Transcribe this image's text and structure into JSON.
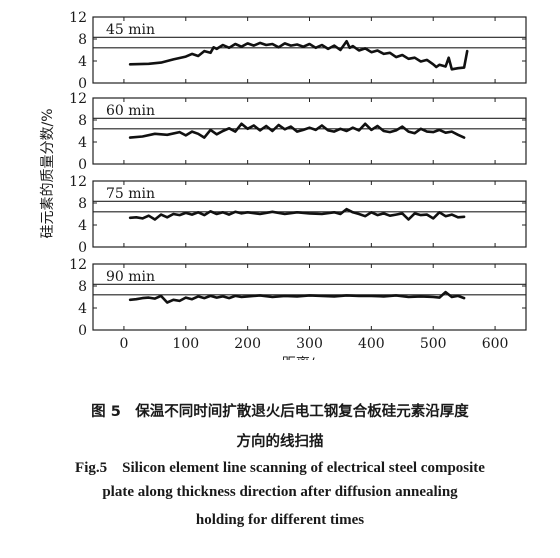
{
  "chart_data": {
    "type": "line",
    "ylabel": "硅元素的质量分数/%",
    "xlabel": "距离/μm",
    "xlim": [
      -50,
      650
    ],
    "ylim": [
      0,
      12
    ],
    "x_ticks": [
      0,
      100,
      200,
      300,
      400,
      500,
      600
    ],
    "y_ticks": [
      0,
      4,
      8,
      12
    ],
    "grid": false,
    "reference_lines_y": [
      6.4,
      8.3
    ],
    "panels": [
      {
        "label": "45 min",
        "x": [
          10,
          40,
          60,
          80,
          100,
          110,
          120,
          130,
          140,
          145,
          150,
          160,
          170,
          180,
          190,
          200,
          210,
          220,
          230,
          240,
          250,
          260,
          270,
          280,
          290,
          300,
          310,
          320,
          330,
          340,
          350,
          360,
          365,
          370,
          380,
          390,
          400,
          410,
          420,
          430,
          440,
          450,
          460,
          470,
          480,
          490,
          500,
          505,
          510,
          520,
          525,
          530,
          540,
          550,
          555
        ],
        "values": [
          3.4,
          3.5,
          3.7,
          4.3,
          4.8,
          5.3,
          4.9,
          5.8,
          5.5,
          6.5,
          6.2,
          6.9,
          6.4,
          7.1,
          6.6,
          7.2,
          6.8,
          7.3,
          6.9,
          7.1,
          6.5,
          7.2,
          6.8,
          7.0,
          6.6,
          7.1,
          6.4,
          6.9,
          6.2,
          6.8,
          6.0,
          7.6,
          6.4,
          6.7,
          5.9,
          6.3,
          5.6,
          5.9,
          5.3,
          5.5,
          4.7,
          5.1,
          4.4,
          4.6,
          3.9,
          4.2,
          3.4,
          2.9,
          3.3,
          3.0,
          4.6,
          2.5,
          2.7,
          2.8,
          5.8
        ]
      },
      {
        "label": "60 min",
        "x": [
          10,
          30,
          50,
          70,
          90,
          100,
          110,
          120,
          130,
          140,
          150,
          160,
          170,
          180,
          190,
          200,
          210,
          220,
          230,
          240,
          250,
          260,
          270,
          280,
          290,
          300,
          310,
          320,
          330,
          340,
          350,
          360,
          370,
          380,
          390,
          400,
          410,
          420,
          430,
          440,
          450,
          460,
          470,
          480,
          490,
          500,
          510,
          520,
          530,
          540,
          550
        ],
        "values": [
          4.8,
          5.0,
          5.5,
          5.3,
          5.8,
          5.2,
          5.9,
          5.5,
          4.8,
          6.2,
          5.4,
          6.0,
          6.5,
          5.9,
          7.3,
          6.4,
          7.0,
          6.1,
          6.9,
          6.0,
          7.1,
          6.3,
          6.8,
          5.9,
          6.2,
          6.6,
          6.2,
          7.0,
          6.1,
          5.9,
          6.4,
          6.0,
          6.6,
          6.1,
          7.3,
          6.2,
          6.9,
          6.0,
          5.8,
          6.1,
          6.8,
          5.9,
          5.6,
          6.4,
          5.9,
          5.8,
          6.2,
          5.7,
          5.9,
          5.3,
          4.8
        ]
      },
      {
        "label": "75 min",
        "x": [
          10,
          20,
          30,
          40,
          50,
          60,
          70,
          80,
          90,
          100,
          110,
          120,
          130,
          140,
          150,
          160,
          170,
          180,
          190,
          200,
          220,
          240,
          260,
          280,
          300,
          320,
          340,
          350,
          360,
          370,
          380,
          390,
          400,
          410,
          420,
          430,
          440,
          450,
          460,
          470,
          480,
          490,
          500,
          510,
          520,
          530,
          540,
          550
        ],
        "values": [
          5.3,
          5.4,
          5.2,
          5.7,
          5.0,
          5.9,
          5.4,
          6.0,
          5.8,
          6.2,
          5.9,
          6.3,
          5.8,
          6.5,
          6.0,
          6.3,
          5.9,
          6.4,
          6.1,
          6.3,
          6.0,
          6.4,
          6.0,
          6.3,
          6.1,
          6.0,
          6.3,
          6.0,
          6.9,
          6.3,
          6.0,
          5.6,
          6.3,
          5.8,
          6.1,
          5.7,
          5.9,
          6.1,
          5.0,
          6.1,
          5.8,
          5.9,
          5.2,
          6.3,
          5.6,
          5.9,
          5.4,
          5.5
        ]
      },
      {
        "label": "90 min",
        "x": [
          10,
          20,
          30,
          40,
          50,
          60,
          70,
          80,
          90,
          100,
          110,
          120,
          130,
          140,
          150,
          160,
          170,
          180,
          190,
          200,
          220,
          240,
          260,
          280,
          300,
          320,
          340,
          360,
          380,
          400,
          420,
          440,
          460,
          480,
          500,
          510,
          520,
          530,
          540,
          550
        ],
        "values": [
          5.5,
          5.6,
          5.8,
          5.9,
          5.7,
          6.2,
          5.0,
          5.5,
          5.3,
          5.9,
          5.6,
          6.1,
          5.8,
          6.2,
          5.9,
          6.1,
          5.8,
          6.2,
          6.0,
          6.1,
          6.3,
          6.0,
          6.2,
          6.1,
          6.3,
          6.2,
          6.1,
          6.3,
          6.2,
          6.2,
          6.1,
          6.3,
          6.0,
          6.1,
          6.0,
          5.9,
          6.9,
          6.0,
          6.2,
          5.8
        ]
      }
    ]
  },
  "caption": {
    "cn_line1": "图 5　保温不同时间扩散退火后电工钢复合板硅元素沿厚度",
    "cn_line2": "方向的线扫描",
    "en_line1": "Fig.5　Silicon element line scanning of electrical steel composite",
    "en_line2": "plate along thickness direction after diffusion annealing",
    "en_line3": "holding for different times"
  },
  "style": {
    "line_color": "#111111",
    "axis_color": "#222222",
    "background": "#ffffff"
  }
}
